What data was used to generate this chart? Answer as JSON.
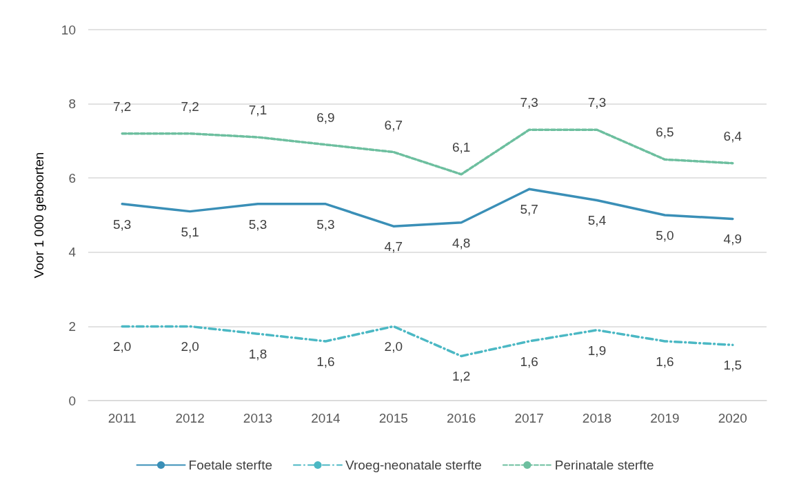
{
  "chart_data": {
    "type": "line",
    "ylabel": "Voor 1 000 geboorten",
    "categories": [
      "2011",
      "2012",
      "2013",
      "2014",
      "2015",
      "2016",
      "2017",
      "2018",
      "2019",
      "2020"
    ],
    "ylim": [
      0,
      10
    ],
    "yticks": [
      0,
      2,
      4,
      6,
      8,
      10
    ],
    "grid": "y",
    "legend": "bottom",
    "marker": "none",
    "series": [
      {
        "name": "Foetale sterfte",
        "color": "#3a8fb7",
        "line_style": "solid",
        "values": [
          5.3,
          5.1,
          5.3,
          5.3,
          4.7,
          4.8,
          5.7,
          5.4,
          5.0,
          4.9
        ],
        "value_labels": [
          "5,3",
          "5,1",
          "5,3",
          "5,3",
          "4,7",
          "4,8",
          "5,7",
          "5,4",
          "5,0",
          "4,9"
        ]
      },
      {
        "name": "Vroeg-neonatale sterfte",
        "color": "#4bb8c4",
        "line_style": "dashdot",
        "values": [
          2.0,
          2.0,
          1.8,
          1.6,
          2.0,
          1.2,
          1.6,
          1.9,
          1.6,
          1.5
        ],
        "value_labels": [
          "2,0",
          "2,0",
          "1,8",
          "1,6",
          "2,0",
          "1,2",
          "1,6",
          "1,9",
          "1,6",
          "1,5"
        ]
      },
      {
        "name": "Perinatale sterfte",
        "color": "#6dbf9f",
        "line_style": "dashed",
        "values": [
          7.2,
          7.2,
          7.1,
          6.9,
          6.7,
          6.1,
          7.3,
          7.3,
          6.5,
          6.4
        ],
        "value_labels": [
          "7,2",
          "7,2",
          "7,1",
          "6,9",
          "6,7",
          "6,1",
          "7,3",
          "7,3",
          "6,5",
          "6,4"
        ]
      }
    ]
  }
}
